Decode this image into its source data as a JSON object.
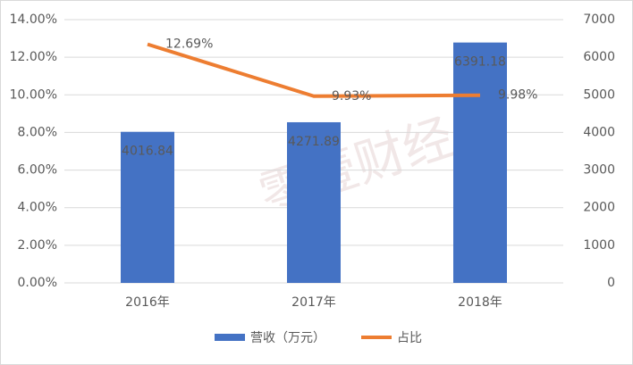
{
  "chart_data": {
    "type": "combo",
    "watermark": "零壹财经",
    "categories": [
      "2016年",
      "2017年",
      "2018年"
    ],
    "series": [
      {
        "name": "营收（万元）",
        "type": "bar",
        "color": "#4472c4",
        "axis": "y2",
        "values": [
          4016.84,
          4271.89,
          6391.18
        ]
      },
      {
        "name": "占比",
        "type": "line",
        "color": "#ed7d31",
        "values": [
          12.69,
          9.93,
          9.98
        ],
        "value_labels": [
          "12.69%",
          "9.93%",
          "9.98%"
        ]
      }
    ],
    "ylim": [
      0,
      14
    ],
    "yticks": [
      {
        "value": 0,
        "label": "0.00%"
      },
      {
        "value": 2,
        "label": "2.00%"
      },
      {
        "value": 4,
        "label": "4.00%"
      },
      {
        "value": 6,
        "label": "6.00%"
      },
      {
        "value": 8,
        "label": "8.00%"
      },
      {
        "value": 10,
        "label": "10.00%"
      },
      {
        "value": 12,
        "label": "12.00%"
      },
      {
        "value": 14,
        "label": "14.00%"
      }
    ],
    "y2lim": [
      0,
      7000
    ],
    "y2ticks": [
      0,
      1000,
      2000,
      3000,
      4000,
      5000,
      6000,
      7000
    ],
    "grid": true,
    "legend": "bottom"
  }
}
